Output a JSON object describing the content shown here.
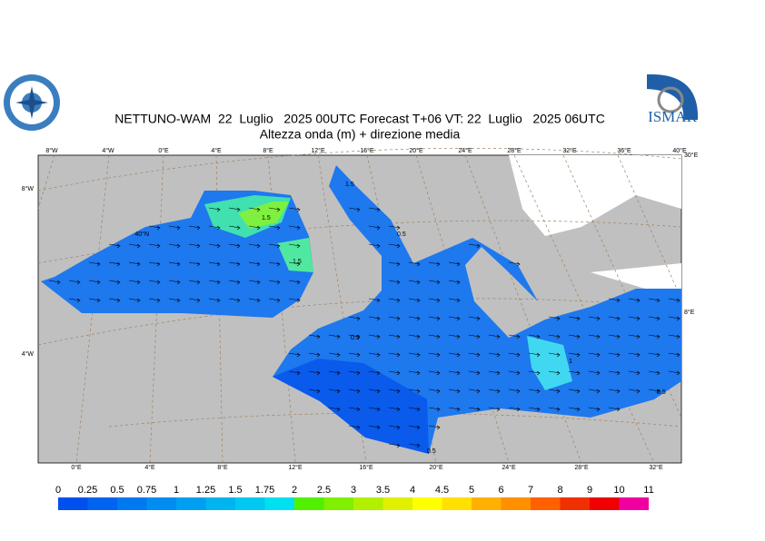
{
  "logo_text": "ISMAR",
  "title": "NETTUNO-WAM  22  Luglio   2025 00UTC Forecast T+06 VT: 22  Luglio   2025 06UTC",
  "subtitle": "Altezza onda (m) + direzione media",
  "top_lon_labels": [
    "8°W",
    "4°W",
    "0°E",
    "4°E",
    "8°E",
    "12°E",
    "16°E",
    "20°E",
    "24°E",
    "28°E",
    "32°E",
    "36°E",
    "40°E"
  ],
  "bottom_lon_labels": [
    "0°E",
    "4°E",
    "8°E",
    "12°E",
    "16°E",
    "20°E",
    "24°E",
    "28°E",
    "32°E"
  ],
  "left_labels": [
    "8°W",
    "40°N",
    "4°W"
  ],
  "right_labels": [
    "30°E",
    "8°E"
  ],
  "contour_labels": [
    "1.5",
    "1.5",
    "1.5",
    "0.5",
    "0.5",
    "1",
    "0.5",
    "0.5"
  ],
  "colorbar": {
    "levels": [
      0,
      0.25,
      0.5,
      0.75,
      1,
      1.25,
      1.5,
      1.75,
      2,
      2.5,
      3,
      3.5,
      4,
      4.5,
      5,
      6,
      7,
      8,
      9,
      10,
      11
    ],
    "colors": [
      "#0050f0",
      "#0064f0",
      "#0078f0",
      "#008cf0",
      "#00a0f0",
      "#00b4f0",
      "#00c8f0",
      "#00e0f0",
      "#50f000",
      "#80f000",
      "#b0f000",
      "#e0f000",
      "#ffff00",
      "#ffe000",
      "#ffb000",
      "#ff9000",
      "#ff6000",
      "#f03000",
      "#f00000",
      "#f000a0"
    ]
  }
}
